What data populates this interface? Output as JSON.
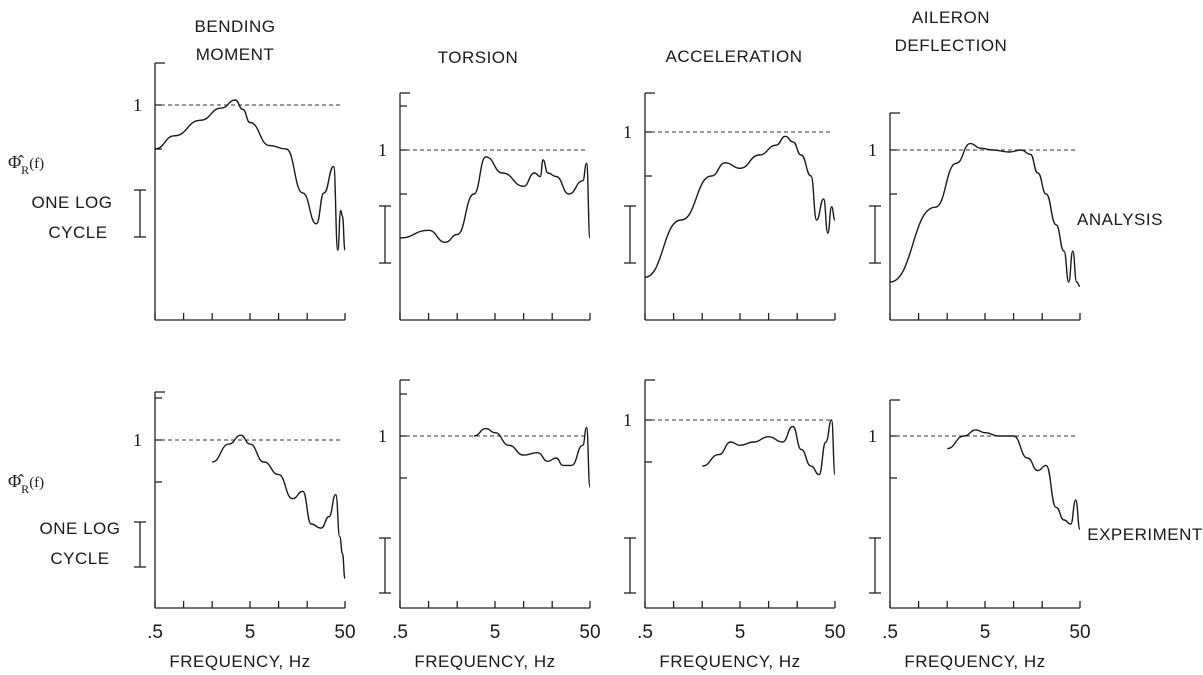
{
  "figure": {
    "phi_label_main": "Φ̂",
    "phi_label_sub": "R",
    "phi_label_arg": "(f)",
    "one_log_cycle": [
      "ONE LOG",
      "CYCLE"
    ],
    "row_labels": [
      "ANALYSIS",
      "EXPERIMENT"
    ],
    "column_titles": [
      [
        "BENDING",
        "MOMENT"
      ],
      [
        "TORSION"
      ],
      [
        "ACCELERATION"
      ],
      [
        "AILERON",
        "DEFLECTION"
      ]
    ],
    "x_tick_labels": [
      ".5",
      "5",
      "50"
    ],
    "x_axis_label": "FREQUENCY,  Hz",
    "reference_label": "1"
  },
  "chart_data": [
    {
      "type": "line",
      "title": "BENDING MOMENT",
      "row": "ANALYSIS",
      "xscale": "log",
      "xlim": [
        0.5,
        50
      ],
      "ylim": [
        0.0005,
        2
      ],
      "reference": 1,
      "x": [
        0.5,
        0.8,
        1.5,
        2.5,
        3.5,
        4.2,
        5,
        8,
        12,
        18,
        25,
        30,
        38,
        42,
        45,
        47,
        50
      ],
      "y": [
        0.1,
        0.2,
        0.45,
        0.85,
        1.3,
        0.8,
        0.4,
        0.12,
        0.1,
        0.01,
        0.002,
        0.01,
        0.04,
        0.0005,
        0.004,
        0.003,
        0.0005
      ]
    },
    {
      "type": "line",
      "title": "TORSION",
      "row": "ANALYSIS",
      "xscale": "log",
      "xlim": [
        0.5,
        50
      ],
      "ylim": [
        0.0005,
        3
      ],
      "reference": 1,
      "x": [
        0.5,
        1,
        1.5,
        2,
        3,
        4,
        6,
        10,
        13,
        15,
        16,
        18,
        22,
        30,
        42,
        46,
        50
      ],
      "y": [
        0.01,
        0.015,
        0.008,
        0.012,
        0.1,
        0.7,
        0.3,
        0.15,
        0.3,
        0.25,
        0.6,
        0.3,
        0.25,
        0.1,
        0.2,
        0.5,
        0.01
      ]
    },
    {
      "type": "line",
      "title": "ACCELERATION",
      "row": "ANALYSIS",
      "xscale": "log",
      "xlim": [
        0.5,
        50
      ],
      "ylim": [
        0.0005,
        3
      ],
      "reference": 1,
      "x": [
        0.5,
        1.2,
        2.5,
        3.5,
        5,
        8,
        12,
        15,
        18,
        22,
        28,
        32,
        38,
        42,
        46,
        50
      ],
      "y": [
        0.0005,
        0.01,
        0.1,
        0.2,
        0.15,
        0.3,
        0.5,
        0.8,
        0.6,
        0.3,
        0.1,
        0.01,
        0.03,
        0.005,
        0.02,
        0.01
      ]
    },
    {
      "type": "line",
      "title": "AILERON DEFLECTION",
      "row": "ANALYSIS",
      "xscale": "log",
      "xlim": [
        0.5,
        50
      ],
      "ylim": [
        0.0005,
        3
      ],
      "reference": 1,
      "x": [
        0.5,
        1.5,
        2.5,
        3.5,
        4.5,
        6,
        9,
        12,
        15,
        18,
        22,
        28,
        34,
        38,
        42,
        46,
        50
      ],
      "y": [
        0.001,
        0.05,
        0.5,
        1.4,
        1.1,
        1.0,
        0.9,
        1.0,
        0.8,
        0.3,
        0.1,
        0.02,
        0.005,
        0.001,
        0.005,
        0.001,
        0.0008
      ]
    },
    {
      "type": "line",
      "title": "BENDING MOMENT",
      "row": "EXPERIMENT",
      "xscale": "log",
      "xlim": [
        0.5,
        50
      ],
      "ylim": [
        0.0005,
        2
      ],
      "reference": 1,
      "x": [
        2,
        3,
        4,
        5,
        7,
        10,
        14,
        18,
        22,
        28,
        34,
        40,
        44,
        47,
        50
      ],
      "y": [
        0.3,
        0.8,
        1.3,
        0.8,
        0.3,
        0.15,
        0.04,
        0.06,
        0.01,
        0.008,
        0.015,
        0.05,
        0.005,
        0.002,
        0.0005
      ]
    },
    {
      "type": "line",
      "title": "TORSION",
      "row": "EXPERIMENT",
      "xscale": "log",
      "xlim": [
        0.5,
        50
      ],
      "ylim": [
        0.0005,
        3
      ],
      "reference": 1,
      "x": [
        3,
        4,
        5,
        7,
        10,
        14,
        18,
        22,
        26,
        32,
        42,
        46,
        50
      ],
      "y": [
        1.0,
        1.5,
        1.2,
        0.6,
        0.35,
        0.4,
        0.25,
        0.3,
        0.2,
        0.2,
        0.6,
        1.6,
        0.06
      ]
    },
    {
      "type": "line",
      "title": "ACCELERATION",
      "row": "EXPERIMENT",
      "xscale": "log",
      "xlim": [
        0.5,
        50
      ],
      "ylim": [
        0.0005,
        3
      ],
      "reference": 1,
      "x": [
        2,
        3,
        4,
        5,
        7,
        10,
        14,
        18,
        22,
        28,
        34,
        40,
        46,
        50
      ],
      "y": [
        0.08,
        0.15,
        0.3,
        0.25,
        0.3,
        0.4,
        0.3,
        0.7,
        0.2,
        0.08,
        0.05,
        0.3,
        1.0,
        0.05
      ]
    },
    {
      "type": "line",
      "title": "AILERON DEFLECTION",
      "row": "EXPERIMENT",
      "xscale": "log",
      "xlim": [
        0.5,
        50
      ],
      "ylim": [
        0.0005,
        3
      ],
      "reference": 1,
      "x": [
        2,
        3,
        4,
        5,
        7,
        10,
        14,
        18,
        22,
        28,
        34,
        40,
        45,
        50
      ],
      "y": [
        0.5,
        1.0,
        1.4,
        1.2,
        1.0,
        1.0,
        0.3,
        0.15,
        0.2,
        0.02,
        0.01,
        0.008,
        0.03,
        0.006
      ]
    }
  ]
}
